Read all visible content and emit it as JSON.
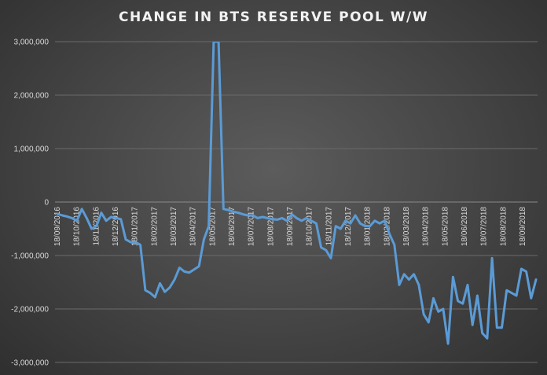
{
  "chart_data": {
    "type": "line",
    "title": "CHANGE IN BTS RESERVE POOL W/W",
    "xlabel": "",
    "ylabel": "",
    "ylim": [
      -3000000,
      3000000
    ],
    "y_ticks": [
      3000000,
      2000000,
      1000000,
      0,
      -1000000,
      -2000000,
      -3000000
    ],
    "y_tick_labels": [
      "3,000,000",
      "2,000,000",
      "1,000,000",
      "0",
      "-1,000,000",
      "-2,000,000",
      "-3,000,000"
    ],
    "x_tick_labels": [
      "18/09/2016",
      "18/10/2016",
      "18/11/2016",
      "18/12/2016",
      "18/01/2017",
      "18/02/2017",
      "18/03/2017",
      "18/04/2017",
      "18/05/2017",
      "18/06/2017",
      "18/07/2017",
      "18/08/2017",
      "18/09/2017",
      "18/10/2017",
      "18/11/2017",
      "18/12/2017",
      "18/01/2018",
      "18/02/2018",
      "18/03/2018",
      "18/04/2018",
      "18/05/2018",
      "18/06/2018",
      "18/07/2018",
      "18/08/2018",
      "18/09/2018"
    ],
    "grid": true,
    "legend": "none",
    "line_color": "#5b9bd5",
    "series": [
      {
        "values": [
          -220000,
          -250000,
          -270000,
          -300000,
          -350000,
          -130000,
          -300000,
          -500000,
          -450000,
          -200000,
          -350000,
          -280000,
          -300000,
          -320000,
          -700000,
          -750000,
          -750000,
          -800000,
          -1650000,
          -1700000,
          -1780000,
          -1520000,
          -1680000,
          -1600000,
          -1450000,
          -1230000,
          -1300000,
          -1320000,
          -1260000,
          -1200000,
          -700000,
          -450000,
          3000000,
          3000000,
          -130000,
          -150000,
          -180000,
          -200000,
          -230000,
          -250000,
          -250000,
          -300000,
          -280000,
          -300000,
          -320000,
          -330000,
          -300000,
          -350000,
          -230000,
          -300000,
          -350000,
          -300000,
          -350000,
          -400000,
          -850000,
          -900000,
          -1050000,
          -450000,
          -500000,
          -350000,
          -400000,
          -250000,
          -400000,
          -450000,
          -450000,
          -350000,
          -400000,
          -350000,
          -600000,
          -800000,
          -1550000,
          -1350000,
          -1450000,
          -1350000,
          -1550000,
          -2100000,
          -2250000,
          -1800000,
          -2050000,
          -2000000,
          -2650000,
          -1400000,
          -1850000,
          -1900000,
          -1550000,
          -2300000,
          -1750000,
          -2450000,
          -2550000,
          -1050000,
          -2350000,
          -2350000,
          -1650000,
          -1700000,
          -1750000,
          -1250000,
          -1300000,
          -1800000,
          -1450000
        ]
      }
    ]
  }
}
